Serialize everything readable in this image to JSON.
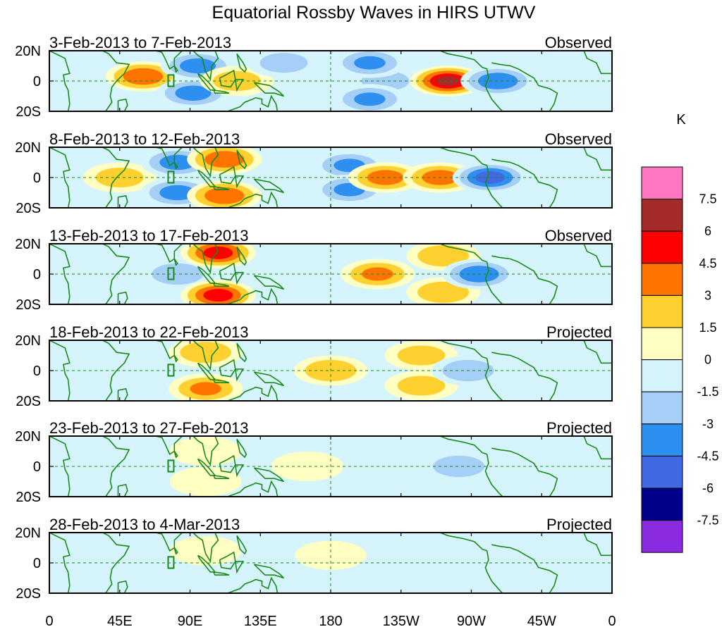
{
  "chart_data": {
    "type": "heatmap",
    "title": "Equatorial Rossby Waves in HIRS UTWV",
    "units": "K",
    "x_ticks": [
      "0",
      "45E",
      "90E",
      "135E",
      "180",
      "135W",
      "90W",
      "45W",
      "0"
    ],
    "y_ticks": [
      "20N",
      "0",
      "20S"
    ],
    "lon_range": [
      0,
      360
    ],
    "lat_range": [
      -20,
      20
    ],
    "colorbar": {
      "labels": [
        "7.5",
        "6",
        "4.5",
        "3",
        "1.5",
        "0",
        "-1.5",
        "-3",
        "-4.5",
        "-6",
        "-7.5"
      ],
      "bins": [
        {
          "range": "> 7.5",
          "color": "#ff77c0"
        },
        {
          "range": "6 to 7.5",
          "color": "#a52a2a"
        },
        {
          "range": "4.5 to 6",
          "color": "#ff0000"
        },
        {
          "range": "3 to 4.5",
          "color": "#ff7400"
        },
        {
          "range": "1.5 to 3",
          "color": "#ffd130"
        },
        {
          "range": "0 to 1.5",
          "color": "#ffffc4"
        },
        {
          "range": "-1.5 to 0",
          "color": "#d6f4fb"
        },
        {
          "range": "-3 to -1.5",
          "color": "#a6cff7"
        },
        {
          "range": "-4.5 to -3",
          "color": "#2d8ff0"
        },
        {
          "range": "-6 to -4.5",
          "color": "#4169e1"
        },
        {
          "range": "-7.5 to -6",
          "color": "#00008b"
        },
        {
          "range": "< -7.5",
          "color": "#8a2be2"
        }
      ]
    },
    "panels": [
      {
        "date_range": "3-Feb-2013 to 7-Feb-2013",
        "status": "Observed",
        "features": [
          {
            "lon": 60,
            "lat": 3,
            "value": 4.0
          },
          {
            "lon": 95,
            "lat": 10,
            "value": -3.5
          },
          {
            "lon": 92,
            "lat": -8,
            "value": -3.5
          },
          {
            "lon": 120,
            "lat": 0,
            "value": 2.0
          },
          {
            "lon": 150,
            "lat": 12,
            "value": -2.0
          },
          {
            "lon": 215,
            "lat": 0,
            "value": -2.0
          },
          {
            "lon": 205,
            "lat": 12,
            "value": -3.0
          },
          {
            "lon": 205,
            "lat": -12,
            "value": -3.0
          },
          {
            "lon": 255,
            "lat": 0,
            "value": 6.0
          },
          {
            "lon": 287,
            "lat": 0,
            "value": -4.0
          }
        ]
      },
      {
        "date_range": "8-Feb-2013 to 12-Feb-2013",
        "status": "Observed",
        "features": [
          {
            "lon": 45,
            "lat": 0,
            "value": 2.0
          },
          {
            "lon": 82,
            "lat": 10,
            "value": -3.5
          },
          {
            "lon": 82,
            "lat": -10,
            "value": -3.5
          },
          {
            "lon": 112,
            "lat": 12,
            "value": 4.0
          },
          {
            "lon": 112,
            "lat": -12,
            "value": 4.0
          },
          {
            "lon": 192,
            "lat": 8,
            "value": -3.0
          },
          {
            "lon": 192,
            "lat": -8,
            "value": -3.0
          },
          {
            "lon": 215,
            "lat": 0,
            "value": 3.5
          },
          {
            "lon": 250,
            "lat": 0,
            "value": 3.5
          },
          {
            "lon": 282,
            "lat": 0,
            "value": -5.0
          }
        ]
      },
      {
        "date_range": "13-Feb-2013 to 17-Feb-2013",
        "status": "Observed",
        "features": [
          {
            "lon": 82,
            "lat": 0,
            "value": -2.5
          },
          {
            "lon": 108,
            "lat": 14,
            "value": 5.0
          },
          {
            "lon": 108,
            "lat": -14,
            "value": 5.0
          },
          {
            "lon": 210,
            "lat": 0,
            "value": 3.0
          },
          {
            "lon": 252,
            "lat": 12,
            "value": 2.5
          },
          {
            "lon": 252,
            "lat": -12,
            "value": 2.5
          },
          {
            "lon": 275,
            "lat": 0,
            "value": -4.0
          }
        ]
      },
      {
        "date_range": "18-Feb-2013 to 22-Feb-2013",
        "status": "Projected",
        "features": [
          {
            "lon": 100,
            "lat": 12,
            "value": 2.5
          },
          {
            "lon": 100,
            "lat": -12,
            "value": 3.0
          },
          {
            "lon": 180,
            "lat": 0,
            "value": 2.5
          },
          {
            "lon": 238,
            "lat": 10,
            "value": 2.0
          },
          {
            "lon": 238,
            "lat": -10,
            "value": 2.0
          },
          {
            "lon": 268,
            "lat": 0,
            "value": -2.5
          }
        ]
      },
      {
        "date_range": "23-Feb-2013 to 27-Feb-2013",
        "status": "Projected",
        "features": [
          {
            "lon": 100,
            "lat": 10,
            "value": 1.0
          },
          {
            "lon": 100,
            "lat": -10,
            "value": 1.0
          },
          {
            "lon": 165,
            "lat": 0,
            "value": 1.2
          },
          {
            "lon": 262,
            "lat": 0,
            "value": -2.5
          }
        ]
      },
      {
        "date_range": "28-Feb-2013 to 4-Mar-2013",
        "status": "Projected",
        "features": [
          {
            "lon": 60,
            "lat": -5,
            "value": -1.0
          },
          {
            "lon": 100,
            "lat": 8,
            "value": 0.8
          },
          {
            "lon": 180,
            "lat": 5,
            "value": 0.8
          },
          {
            "lon": 245,
            "lat": 0,
            "value": -1.0
          }
        ]
      }
    ]
  }
}
